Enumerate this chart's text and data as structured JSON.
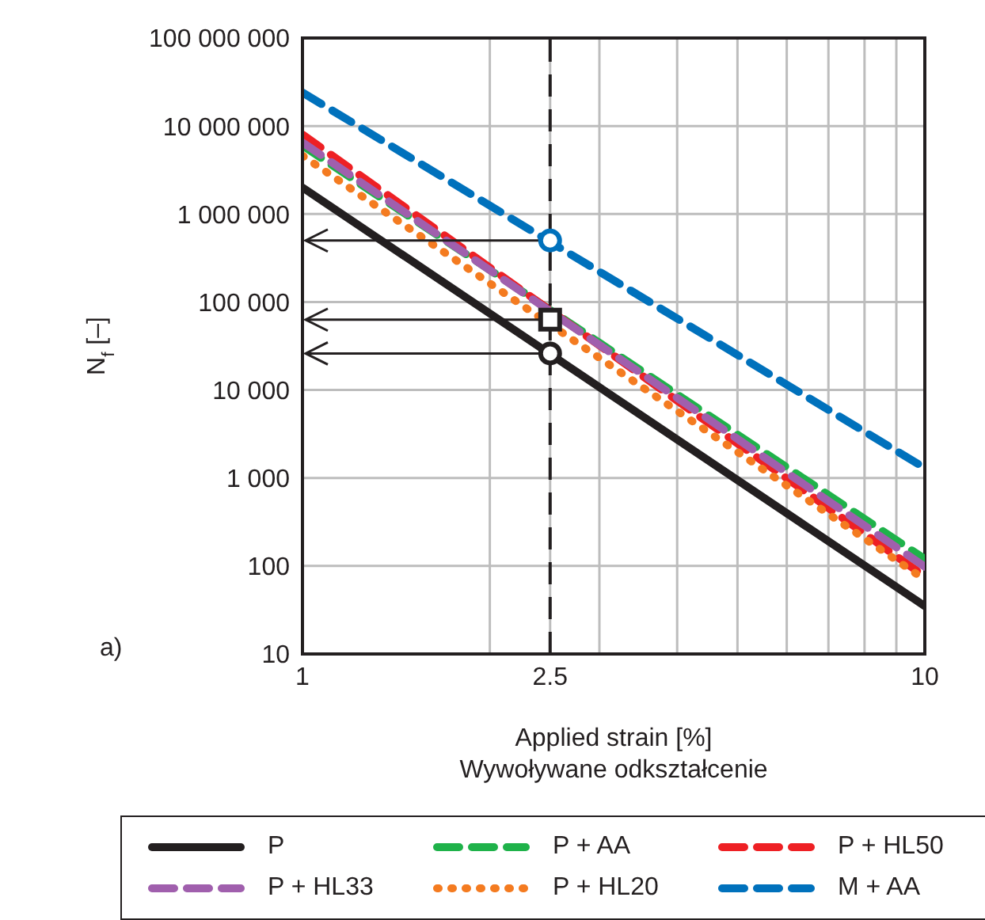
{
  "chart_data": {
    "type": "line",
    "xlabel": "Applied strain [%]\nWywoływane odkształcenie",
    "ylabel": "N$_{f}$ [–]",
    "log": "xy",
    "xlim": [
      1,
      10
    ],
    "xticks": [
      1,
      {
        "value": 2,
        "label": null
      },
      2.5,
      {
        "value": 3,
        "label": null
      },
      {
        "value": 4,
        "label": null
      },
      {
        "value": 5,
        "label": null
      },
      {
        "value": 6,
        "label": null
      },
      {
        "value": 7,
        "label": null
      },
      {
        "value": 8,
        "label": null
      },
      {
        "value": 9,
        "label": null
      },
      10
    ],
    "ylim": [
      10,
      100000000
    ],
    "yticks": [
      {
        "value": 10,
        "label": "10"
      },
      {
        "value": 100,
        "label": "100"
      },
      {
        "value": 1000,
        "label": "1 000"
      },
      {
        "value": 10000,
        "label": "10 000"
      },
      {
        "value": 100000,
        "label": "100 000"
      },
      {
        "value": 1000000,
        "label": "1 000 000"
      },
      {
        "value": 10000000,
        "label": "10 000 000"
      },
      {
        "value": 100000000,
        "label": "100 000 000"
      }
    ],
    "grid": true,
    "legend": "bottom",
    "marker": "none",
    "series": [
      {
        "name": "P",
        "color": "#231f20",
        "x": [
          1,
          10
        ],
        "values": [
          2000000,
          35
        ],
        "line_style": "solid"
      },
      {
        "name": "P + AA",
        "color": "#1fb24a",
        "x": [
          1,
          10
        ],
        "values": [
          6000000,
          120
        ],
        "line_style": "dashed"
      },
      {
        "name": "P + HL50",
        "color": "#ee2024",
        "x": [
          1,
          10
        ],
        "values": [
          8000000,
          76
        ],
        "line_style": "dashed"
      },
      {
        "name": "P + HL33",
        "color": "#a05fad",
        "x": [
          1,
          10
        ],
        "values": [
          6500000,
          98
        ],
        "line_style": "dashed"
      },
      {
        "name": "P + HL20",
        "color": "#f47b20",
        "x": [
          1,
          10
        ],
        "values": [
          4600000,
          70
        ],
        "line_style": "dotted"
      },
      {
        "name": "M + AA",
        "color": "#0071bc",
        "x": [
          1,
          10
        ],
        "values": [
          24000000,
          1300
        ],
        "line_style": "dashed"
      },
      {
        "type": "scatter",
        "color": "#0071bc",
        "x": [
          2.5
        ],
        "values": [
          500000
        ],
        "marker": "circle"
      },
      {
        "type": "scatter",
        "color": "#231f20",
        "x": [
          2.5
        ],
        "values": [
          63000
        ],
        "marker": "square"
      },
      {
        "type": "scatter",
        "color": "#231f20",
        "x": [
          2.5
        ],
        "values": [
          26000
        ],
        "marker": "circle"
      }
    ],
    "ref_lines": [
      {
        "axis": "x",
        "value": 2.5,
        "color": "#231f20",
        "line_style": "dashed"
      }
    ],
    "annotations": [
      "a)"
    ]
  }
}
